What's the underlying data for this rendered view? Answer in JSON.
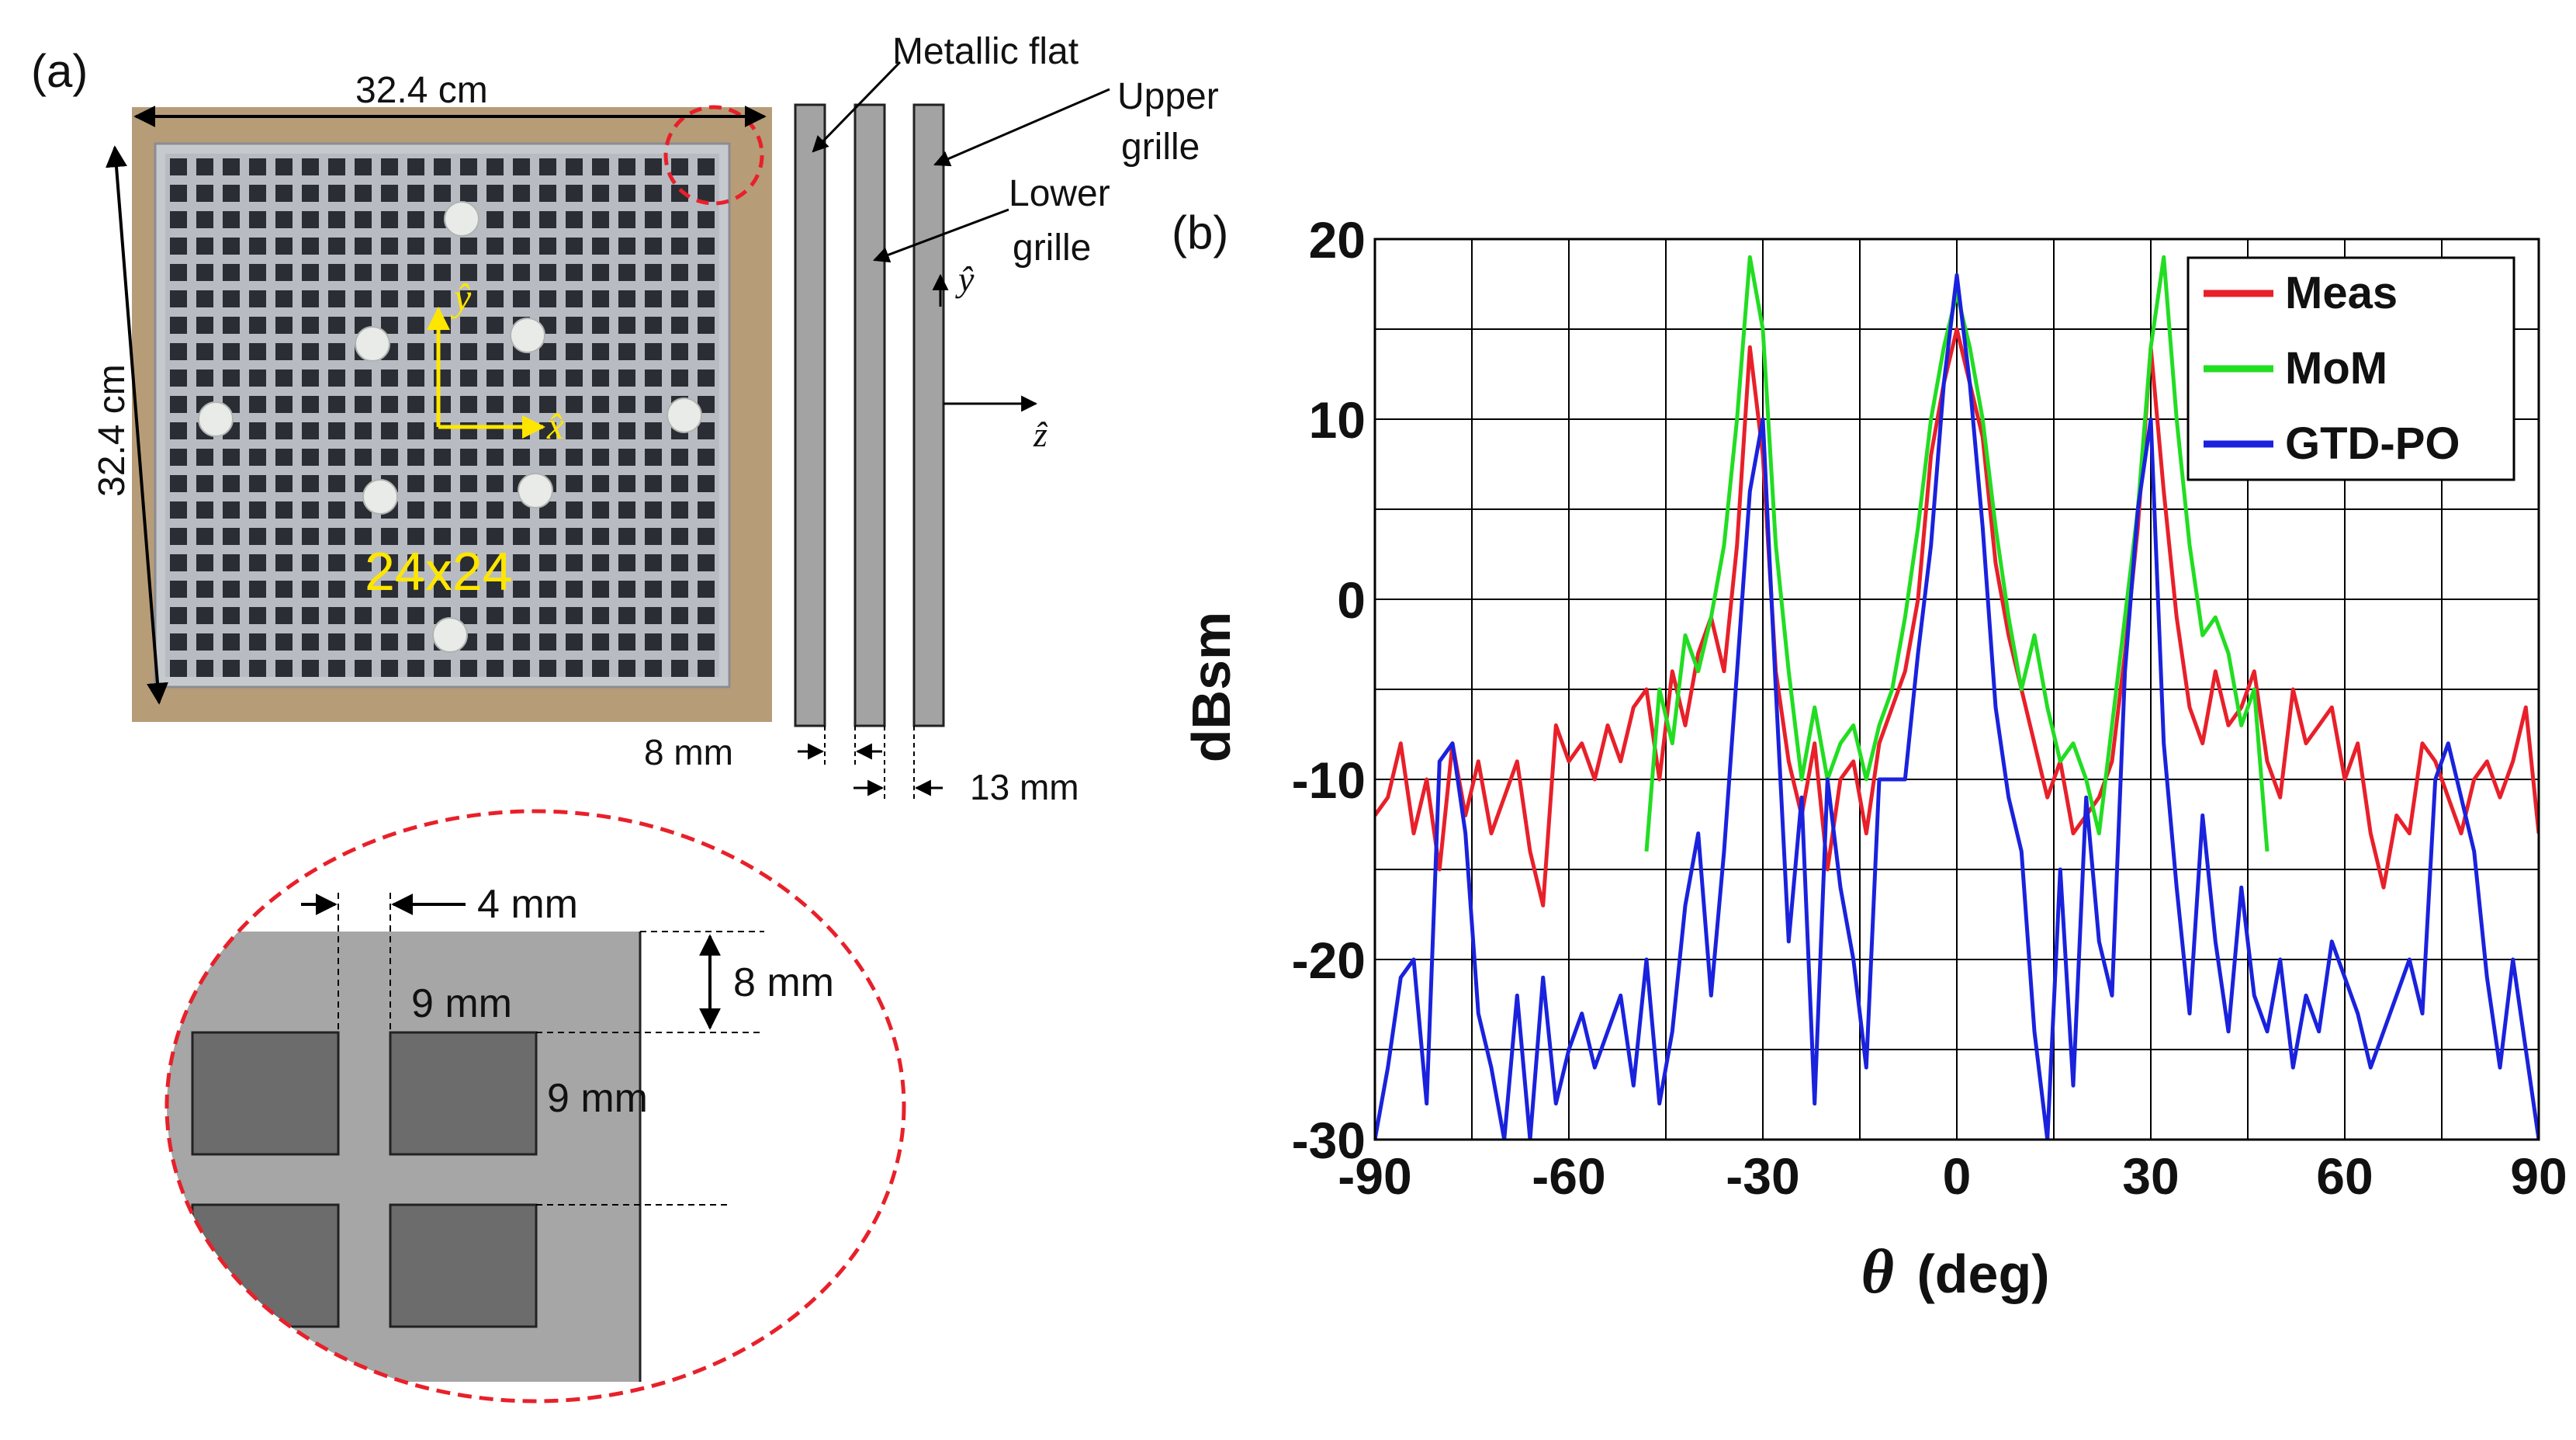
{
  "panel_a": {
    "label": "(a)",
    "photo": {
      "width_label": "32.4 cm",
      "height_label": "32.4 cm",
      "grid_label": "24x24",
      "axis_y_label": "ŷ",
      "axis_x_label": "x̂",
      "highlight_color": "#e8202a",
      "text_color": "#ffe600"
    },
    "cross_section": {
      "metallic_flat": "Metallic flat",
      "upper_grille_1": "Upper",
      "upper_grille_2": "grille",
      "lower_grille_1": "Lower",
      "lower_grille_2": "grille",
      "y_axis": "ŷ",
      "z_axis": "ẑ",
      "gap_8": "8 mm",
      "gap_13": "13 mm"
    },
    "detail": {
      "dim_4": "4 mm",
      "dim_8": "8 mm",
      "dim_9_h": "9 mm",
      "dim_9_v": "9 mm"
    }
  },
  "panel_b": {
    "label": "(b)",
    "chart_data": {
      "type": "line",
      "xlabel_symbol": "θ",
      "xlabel_unit": "(deg)",
      "ylabel": "dBsm",
      "xlim": [
        -90,
        90
      ],
      "ylim": [
        -30,
        20
      ],
      "xticks": [
        -90,
        -60,
        -30,
        0,
        30,
        60,
        90
      ],
      "yticks": [
        -30,
        -20,
        -10,
        0,
        10,
        20
      ],
      "grid": true,
      "legend_position": "top-right",
      "series": [
        {
          "name": "Meas",
          "color": "#e8202a",
          "x": [
            -90,
            -88,
            -86,
            -84,
            -82,
            -80,
            -78,
            -76,
            -74,
            -72,
            -70,
            -68,
            -66,
            -64,
            -62,
            -60,
            -58,
            -56,
            -54,
            -52,
            -50,
            -48,
            -46,
            -44,
            -42,
            -40,
            -38,
            -36,
            -34,
            -32,
            -30,
            -28,
            -26,
            -24,
            -22,
            -20,
            -18,
            -16,
            -14,
            -12,
            -10,
            -8,
            -6,
            -4,
            -2,
            0,
            2,
            4,
            6,
            8,
            10,
            12,
            14,
            16,
            18,
            20,
            22,
            24,
            26,
            28,
            30,
            32,
            34,
            36,
            38,
            40,
            42,
            44,
            46,
            48,
            50,
            52,
            54,
            56,
            58,
            60,
            62,
            64,
            66,
            68,
            70,
            72,
            74,
            76,
            78,
            80,
            82,
            84,
            86,
            88,
            90
          ],
          "y": [
            -12,
            -11,
            -8,
            -13,
            -10,
            -15,
            -8,
            -12,
            -9,
            -13,
            -11,
            -9,
            -14,
            -17,
            -7,
            -9,
            -8,
            -10,
            -7,
            -9,
            -6,
            -5,
            -10,
            -4,
            -7,
            -3,
            -1,
            -4,
            3,
            14,
            8,
            -4,
            -9,
            -12,
            -8,
            -15,
            -10,
            -9,
            -13,
            -8,
            -6,
            -4,
            0,
            8,
            12,
            15,
            12,
            9,
            2,
            -2,
            -5,
            -8,
            -11,
            -9,
            -13,
            -12,
            -11,
            -9,
            -3,
            4,
            14,
            6,
            -1,
            -6,
            -8,
            -4,
            -7,
            -6,
            -4,
            -9,
            -11,
            -5,
            -8,
            -7,
            -6,
            -10,
            -8,
            -13,
            -16,
            -12,
            -13,
            -8,
            -9,
            -11,
            -13,
            -10,
            -9,
            -11,
            -9,
            -6,
            -13
          ]
        },
        {
          "name": "MoM",
          "color": "#22dd22",
          "x": [
            -48,
            -46,
            -44,
            -42,
            -40,
            -38,
            -36,
            -34,
            -32,
            -30,
            -28,
            -26,
            -24,
            -22,
            -20,
            -18,
            -16,
            -14,
            -12,
            -10,
            -8,
            -6,
            -4,
            -2,
            0,
            2,
            4,
            6,
            8,
            10,
            12,
            14,
            16,
            18,
            20,
            22,
            24,
            26,
            28,
            30,
            32,
            34,
            36,
            38,
            40,
            42,
            44,
            46,
            48
          ],
          "y": [
            -14,
            -5,
            -8,
            -2,
            -4,
            -1,
            3,
            10,
            19,
            15,
            3,
            -4,
            -10,
            -6,
            -10,
            -8,
            -7,
            -10,
            -7,
            -5,
            -1,
            4,
            10,
            14,
            17,
            14,
            10,
            4,
            -1,
            -5,
            -2,
            -6,
            -9,
            -8,
            -10,
            -13,
            -7,
            -1,
            5,
            14,
            19,
            10,
            3,
            -2,
            -1,
            -3,
            -7,
            -5,
            -14
          ]
        },
        {
          "name": "GTD-PO",
          "color": "#1a22dd",
          "x": [
            -90,
            -88,
            -86,
            -84,
            -82,
            -80,
            -78,
            -76,
            -74,
            -72,
            -70,
            -68,
            -66,
            -64,
            -62,
            -60,
            -58,
            -56,
            -54,
            -52,
            -50,
            -48,
            -46,
            -44,
            -42,
            -40,
            -38,
            -36,
            -34,
            -32,
            -30,
            -28,
            -26,
            -24,
            -22,
            -20,
            -18,
            -16,
            -14,
            -12,
            -10,
            -8,
            -6,
            -4,
            -2,
            0,
            2,
            4,
            6,
            8,
            10,
            12,
            14,
            16,
            18,
            20,
            22,
            24,
            26,
            28,
            30,
            32,
            34,
            36,
            38,
            40,
            42,
            44,
            46,
            48,
            50,
            52,
            54,
            56,
            58,
            60,
            62,
            64,
            66,
            68,
            70,
            72,
            74,
            76,
            78,
            80,
            82,
            84,
            86,
            88,
            90
          ],
          "y": [
            -30,
            -26,
            -21,
            -20,
            -28,
            -9,
            -8,
            -13,
            -23,
            -26,
            -30,
            -22,
            -30,
            -21,
            -28,
            -25,
            -23,
            -26,
            -24,
            -22,
            -27,
            -20,
            -28,
            -24,
            -17,
            -13,
            -22,
            -14,
            -4,
            6,
            10,
            -5,
            -19,
            -11,
            -28,
            -10,
            -16,
            -20,
            -26,
            -10,
            -10,
            -10,
            -3,
            3,
            12,
            18,
            12,
            4,
            -6,
            -11,
            -14,
            -24,
            -30,
            -15,
            -27,
            -11,
            -19,
            -22,
            -4,
            5,
            10,
            -8,
            -16,
            -23,
            -12,
            -19,
            -24,
            -16,
            -22,
            -24,
            -20,
            -26,
            -22,
            -24,
            -19,
            -21,
            -23,
            -26,
            -24,
            -22,
            -20,
            -23,
            -10,
            -8,
            -11,
            -14,
            -21,
            -26,
            -20,
            -25,
            -30
          ]
        }
      ]
    }
  }
}
